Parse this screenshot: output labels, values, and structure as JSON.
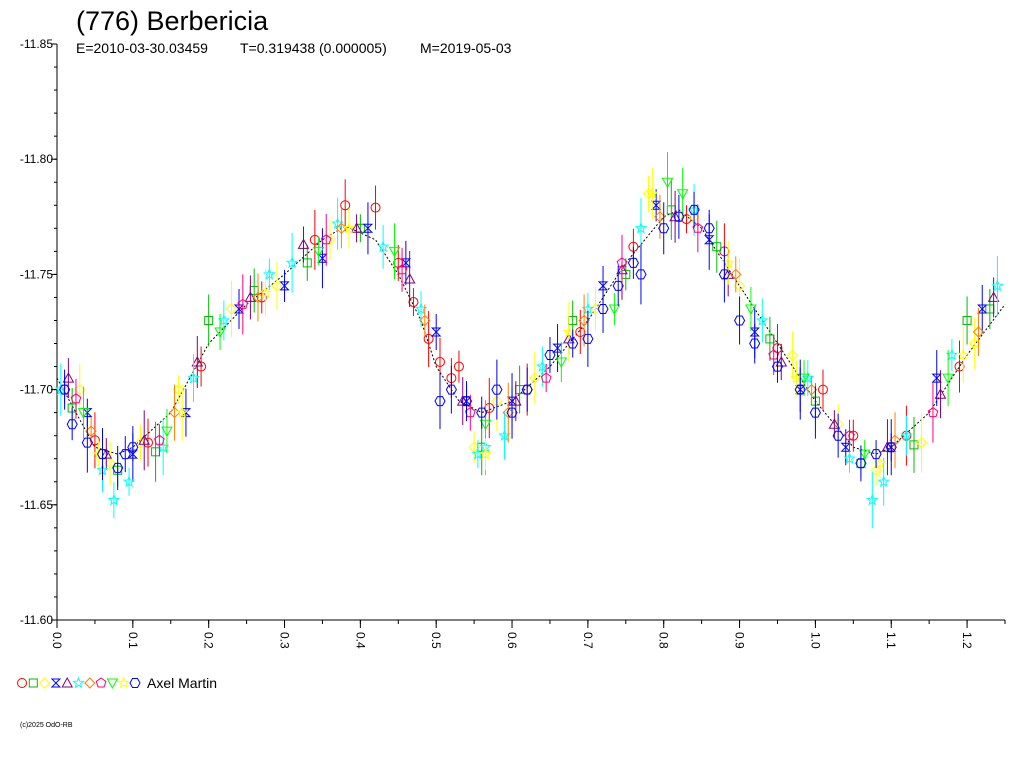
{
  "chart_data": {
    "type": "scatter",
    "title": "(776) Berbericia",
    "subtitle": {
      "epoch": "E=2010-03-30.03459",
      "period": "T=0.319438 (0.000005)",
      "modified": "M=2019-05-03"
    },
    "xlabel": "",
    "ylabel": "",
    "xlim": [
      0.0,
      1.25
    ],
    "ylim": [
      -11.85,
      -11.6
    ],
    "y_inverted": true,
    "grid": false,
    "x_ticks": [
      0.0,
      0.1,
      0.2,
      0.3,
      0.4,
      0.5,
      0.6,
      0.7,
      0.8,
      0.9,
      1.0,
      1.1,
      1.2
    ],
    "x_tick_labels": [
      "0.0",
      "0.1",
      "0.2",
      "0.3",
      "0.4",
      "0.5",
      "0.6",
      "0.7",
      "0.8",
      "0.9",
      "1.0",
      "1.1",
      "1.2"
    ],
    "y_ticks": [
      -11.85,
      -11.8,
      -11.75,
      -11.7,
      -11.65,
      -11.6
    ],
    "y_tick_labels": [
      "-11.85",
      "-11.80",
      "-11.75",
      "-11.70",
      "-11.65",
      "-11.60"
    ],
    "legend": {
      "placement": "bottom-left",
      "label": "Axel Martin",
      "marker_colors": [
        "#ff0000",
        "#00bb00",
        "#ffff00",
        "#0000ff",
        "#800080",
        "#00ffff",
        "#ff8000",
        "#ff0080",
        "#00ff00",
        "#ffff00",
        "#0000ff"
      ],
      "marker_shapes": [
        "circle",
        "square",
        "diamond",
        "hourglass",
        "triangle",
        "star",
        "diamond",
        "pentagon",
        "triangle-down",
        "star",
        "hexagon"
      ]
    },
    "fit_curve": {
      "x": [
        0.0,
        0.05,
        0.08,
        0.1,
        0.15,
        0.2,
        0.25,
        0.3,
        0.35,
        0.38,
        0.42,
        0.45,
        0.48,
        0.5,
        0.53,
        0.56,
        0.6,
        0.65,
        0.7,
        0.75,
        0.8,
        0.82,
        0.85,
        0.9,
        0.95,
        1.0,
        1.05,
        1.08,
        1.1,
        1.15,
        1.2,
        1.25
      ],
      "y": [
        -11.705,
        -11.675,
        -11.672,
        -11.675,
        -11.69,
        -11.72,
        -11.737,
        -11.75,
        -11.765,
        -11.771,
        -11.765,
        -11.75,
        -11.73,
        -11.71,
        -11.695,
        -11.69,
        -11.695,
        -11.71,
        -11.73,
        -11.755,
        -11.775,
        -11.778,
        -11.77,
        -11.745,
        -11.72,
        -11.695,
        -11.675,
        -11.672,
        -11.675,
        -11.69,
        -11.715,
        -11.737
      ]
    },
    "series": [
      {
        "color": "#ff0000",
        "shape": "circle",
        "x": [
          0.01,
          0.05,
          0.12,
          0.19,
          0.27,
          0.34,
          0.38,
          0.42,
          0.45,
          0.47,
          0.49,
          0.505,
          0.52,
          0.53,
          0.57,
          0.62,
          0.69,
          0.76,
          0.83,
          0.88,
          0.95,
          1.01,
          1.05,
          1.12,
          1.19
        ],
        "y": [
          -11.7,
          -11.678,
          -11.677,
          -11.71,
          -11.74,
          -11.765,
          -11.78,
          -11.779,
          -11.755,
          -11.738,
          -11.722,
          -11.712,
          -11.705,
          -11.71,
          -11.692,
          -11.7,
          -11.725,
          -11.762,
          -11.774,
          -11.76,
          -11.718,
          -11.7,
          -11.68,
          -11.68,
          -11.71
        ]
      },
      {
        "color": "#00bb00",
        "shape": "square",
        "x": [
          0.02,
          0.08,
          0.13,
          0.2,
          0.26,
          0.33,
          0.4,
          0.56,
          0.61,
          0.68,
          0.75,
          0.81,
          0.87,
          0.94,
          1.0,
          1.06,
          1.13,
          1.2,
          1.23
        ],
        "y": [
          -11.692,
          -11.665,
          -11.673,
          -11.73,
          -11.743,
          -11.755,
          -11.77,
          -11.675,
          -11.7,
          -11.73,
          -11.75,
          -11.778,
          -11.762,
          -11.722,
          -11.695,
          -11.668,
          -11.676,
          -11.73,
          -11.735
        ]
      },
      {
        "color": "#ffff00",
        "shape": "diamond",
        "x": [
          0.03,
          0.07,
          0.11,
          0.16,
          0.23,
          0.29,
          0.36,
          0.55,
          0.58,
          0.63,
          0.71,
          0.78,
          0.84,
          0.9,
          0.97,
          1.03,
          1.08,
          1.14,
          1.21
        ],
        "y": [
          -11.7,
          -11.668,
          -11.677,
          -11.7,
          -11.735,
          -11.745,
          -11.765,
          -11.675,
          -11.695,
          -11.705,
          -11.735,
          -11.785,
          -11.775,
          -11.745,
          -11.715,
          -11.685,
          -11.665,
          -11.677,
          -11.72
        ]
      },
      {
        "color": "#0000ff",
        "shape": "hourglass",
        "x": [
          0.04,
          0.1,
          0.17,
          0.24,
          0.3,
          0.35,
          0.41,
          0.46,
          0.5,
          0.54,
          0.6,
          0.66,
          0.72,
          0.79,
          0.86,
          0.92,
          0.98,
          1.04,
          1.1,
          1.16,
          1.22
        ],
        "y": [
          -11.69,
          -11.672,
          -11.69,
          -11.735,
          -11.745,
          -11.757,
          -11.77,
          -11.755,
          -11.725,
          -11.695,
          -11.695,
          -11.718,
          -11.745,
          -11.78,
          -11.765,
          -11.725,
          -11.7,
          -11.675,
          -11.675,
          -11.705,
          -11.735
        ]
      },
      {
        "color": "#800080",
        "shape": "triangle",
        "x": [
          0.015,
          0.065,
          0.115,
          0.185,
          0.255,
          0.325,
          0.395,
          0.465,
          0.535,
          0.605,
          0.675,
          0.745,
          0.815,
          0.885,
          0.955,
          1.025,
          1.095,
          1.165,
          1.235
        ],
        "y": [
          -11.705,
          -11.672,
          -11.678,
          -11.712,
          -11.74,
          -11.763,
          -11.77,
          -11.748,
          -11.695,
          -11.695,
          -11.722,
          -11.752,
          -11.775,
          -11.75,
          -11.712,
          -11.685,
          -11.675,
          -11.698,
          -11.74
        ]
      },
      {
        "color": "#00ffff",
        "shape": "star",
        "x": [
          0.005,
          0.06,
          0.075,
          0.095,
          0.14,
          0.18,
          0.22,
          0.28,
          0.31,
          0.37,
          0.43,
          0.48,
          0.555,
          0.565,
          0.59,
          0.64,
          0.7,
          0.77,
          0.84,
          0.93,
          0.99,
          1.045,
          1.075,
          1.09,
          1.12,
          1.18,
          1.24
        ],
        "y": [
          -11.7,
          -11.665,
          -11.652,
          -11.66,
          -11.675,
          -11.705,
          -11.73,
          -11.75,
          -11.755,
          -11.772,
          -11.762,
          -11.735,
          -11.672,
          -11.675,
          -11.68,
          -11.71,
          -11.735,
          -11.77,
          -11.778,
          -11.73,
          -11.705,
          -11.67,
          -11.652,
          -11.66,
          -11.68,
          -11.715,
          -11.745
        ]
      },
      {
        "color": "#ff8000",
        "shape": "diamond",
        "x": [
          0.045,
          0.155,
          0.265,
          0.375,
          0.485,
          0.595,
          0.695,
          0.795,
          0.895,
          0.995,
          1.105,
          1.215
        ],
        "y": [
          -11.682,
          -11.69,
          -11.74,
          -11.77,
          -11.73,
          -11.69,
          -11.73,
          -11.775,
          -11.75,
          -11.7,
          -11.678,
          -11.725
        ]
      },
      {
        "color": "#ff0080",
        "shape": "pentagon",
        "x": [
          0.025,
          0.135,
          0.245,
          0.355,
          0.455,
          0.545,
          0.645,
          0.745,
          0.845,
          0.945,
          1.045,
          1.155
        ],
        "y": [
          -11.696,
          -11.678,
          -11.737,
          -11.765,
          -11.752,
          -11.69,
          -11.705,
          -11.755,
          -11.77,
          -11.715,
          -11.68,
          -11.69
        ]
      },
      {
        "color": "#00ff00",
        "shape": "triangle-down",
        "x": [
          0.035,
          0.145,
          0.215,
          0.345,
          0.445,
          0.565,
          0.665,
          0.735,
          0.805,
          0.825,
          0.915,
          0.985,
          1.065,
          1.175
        ],
        "y": [
          -11.69,
          -11.682,
          -11.725,
          -11.76,
          -11.76,
          -11.685,
          -11.712,
          -11.735,
          -11.79,
          -11.785,
          -11.735,
          -11.705,
          -11.672,
          -11.705
        ]
      },
      {
        "color": "#ffff00",
        "shape": "star",
        "x": [
          0.055,
          0.165,
          0.275,
          0.385,
          0.565,
          0.675,
          0.785,
          0.885,
          0.975,
          1.085,
          1.195
        ],
        "y": [
          -11.672,
          -11.69,
          -11.742,
          -11.77,
          -11.672,
          -11.725,
          -11.785,
          -11.755,
          -11.705,
          -11.668,
          -11.715
        ]
      },
      {
        "color": "#0000ff",
        "shape": "hexagon",
        "x": [
          0.01,
          0.02,
          0.04,
          0.06,
          0.08,
          0.09,
          0.1,
          0.505,
          0.52,
          0.54,
          0.56,
          0.58,
          0.6,
          0.62,
          0.65,
          0.68,
          0.7,
          0.72,
          0.74,
          0.76,
          0.77,
          0.8,
          0.82,
          0.84,
          0.86,
          0.88,
          0.9,
          0.92,
          0.95,
          0.98,
          1.0,
          1.03,
          1.06,
          1.08,
          1.1
        ],
        "y": [
          -11.7,
          -11.685,
          -11.677,
          -11.672,
          -11.666,
          -11.672,
          -11.675,
          -11.695,
          -11.7,
          -11.695,
          -11.69,
          -11.7,
          -11.69,
          -11.7,
          -11.715,
          -11.72,
          -11.722,
          -11.735,
          -11.745,
          -11.755,
          -11.75,
          -11.77,
          -11.775,
          -11.778,
          -11.77,
          -11.75,
          -11.73,
          -11.72,
          -11.71,
          -11.7,
          -11.69,
          -11.68,
          -11.668,
          -11.672,
          -11.675
        ]
      }
    ]
  },
  "footer": {
    "copyright": "(c)2025 OdO-RB"
  }
}
